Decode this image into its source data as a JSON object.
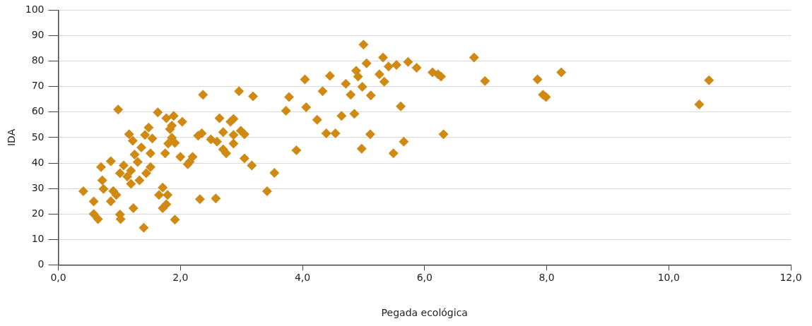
{
  "chart_data": {
    "type": "scatter",
    "xlabel": "Pegada ecológica",
    "ylabel": "IDA",
    "xlim": [
      0,
      12
    ],
    "ylim": [
      0,
      100
    ],
    "xticks": [
      {
        "value": 0,
        "label": "0,0"
      },
      {
        "value": 2,
        "label": "2,0"
      },
      {
        "value": 4,
        "label": "4,0"
      },
      {
        "value": 6,
        "label": "6,0"
      },
      {
        "value": 8,
        "label": "8,0"
      },
      {
        "value": 10,
        "label": "10,0"
      },
      {
        "value": 12,
        "label": "12,0"
      }
    ],
    "yticks": [
      0,
      10,
      20,
      30,
      40,
      50,
      60,
      70,
      80,
      90,
      100
    ],
    "grid": "y",
    "legend": false,
    "marker": "diamond",
    "series": [
      {
        "color": "#d08a13",
        "x": [
          0.41,
          0.58,
          0.58,
          0.65,
          0.7,
          0.72,
          0.74,
          0.86,
          0.9,
          0.86,
          0.95,
          0.98,
          1.01,
          1.02,
          1.01,
          1.07,
          1.13,
          1.19,
          1.16,
          1.22,
          1.23,
          1.19,
          1.25,
          1.3,
          1.33,
          1.36,
          1.4,
          1.42,
          1.44,
          1.48,
          1.51,
          1.54,
          1.51,
          1.63,
          1.65,
          1.71,
          1.71,
          1.77,
          1.75,
          1.79,
          1.77,
          1.8,
          1.83,
          1.86,
          1.89,
          1.91,
          1.86,
          1.91,
          2.03,
          2.0,
          2.15,
          2.2,
          2.12,
          2.32,
          2.29,
          2.35,
          2.37,
          2.58,
          2.64,
          2.5,
          2.6,
          2.7,
          2.7,
          2.75,
          2.82,
          2.87,
          2.87,
          2.87,
          2.96,
          2.99,
          3.05,
          3.05,
          3.19,
          3.17,
          3.42,
          3.54,
          3.73,
          3.78,
          3.9,
          4.04,
          4.06,
          4.24,
          4.33,
          4.39,
          4.45,
          4.54,
          4.64,
          4.71,
          4.79,
          4.85,
          4.88,
          4.91,
          4.98,
          4.97,
          5.0,
          5.05,
          5.11,
          5.12,
          5.26,
          5.32,
          5.34,
          5.41,
          5.49,
          5.54,
          5.61,
          5.66,
          5.73,
          5.87,
          6.13,
          6.22,
          6.27,
          6.31,
          6.81,
          6.99,
          7.85,
          7.94,
          7.99,
          8.24,
          10.5,
          10.66
        ],
        "values": [
          28.9,
          24.9,
          20,
          18,
          38.4,
          33.2,
          29.8,
          40.7,
          29,
          25,
          27.5,
          61,
          19.8,
          18,
          36,
          39,
          34.7,
          37,
          51.3,
          48.7,
          22.3,
          31.8,
          43.3,
          40.4,
          33.2,
          46.1,
          14.6,
          51,
          36,
          53.9,
          43.8,
          49.6,
          38.4,
          59.9,
          27.5,
          30.4,
          22.3,
          23.8,
          43.8,
          27.5,
          57.6,
          47.6,
          53.3,
          54.7,
          58.5,
          17.8,
          49.9,
          47.9,
          56.2,
          42.4,
          40.4,
          42.4,
          39.5,
          25.8,
          50.7,
          51.6,
          66.8,
          26.1,
          57.6,
          49.3,
          48.4,
          52.1,
          45.3,
          43.8,
          56.2,
          57.3,
          47.6,
          51,
          68.2,
          52.7,
          51.3,
          41.8,
          66.2,
          39,
          28.9,
          36.1,
          60.5,
          65.9,
          45,
          72.8,
          61.9,
          57,
          68.2,
          51.6,
          74.2,
          51.6,
          58.5,
          71.1,
          66.8,
          59.3,
          76.2,
          73.9,
          69.9,
          45.6,
          86.5,
          79.1,
          51.3,
          66.5,
          74.8,
          81.4,
          71.9,
          77.9,
          43.8,
          78.5,
          62.2,
          48.4,
          79.7,
          77.4,
          75.6,
          74.8,
          73.9,
          51.3,
          81.4,
          72.2,
          72.8,
          66.8,
          65.9,
          75.6,
          63,
          72.5
        ]
      }
    ]
  }
}
